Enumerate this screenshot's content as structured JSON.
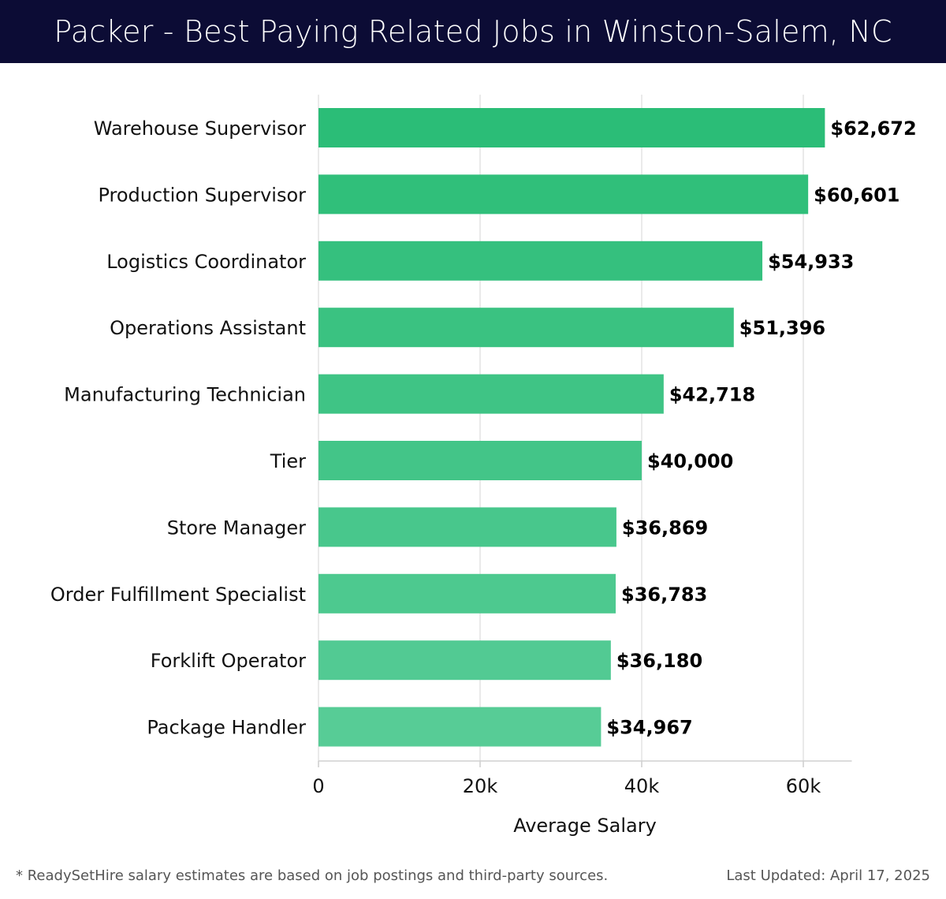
{
  "header": {
    "title": "Packer - Best Paying Related Jobs in Winston-Salem, NC"
  },
  "chart_data": {
    "type": "bar",
    "orientation": "horizontal",
    "title": "Packer - Best Paying Related Jobs in Winston-Salem, NC",
    "categories": [
      "Warehouse Supervisor",
      "Production Supervisor",
      "Logistics Coordinator",
      "Operations Assistant",
      "Manufacturing Technician",
      "Tier",
      "Store Manager",
      "Order Fulfillment Specialist",
      "Forklift Operator",
      "Package Handler"
    ],
    "values": [
      62672,
      60601,
      54933,
      51396,
      42718,
      40000,
      36869,
      36783,
      36180,
      34967
    ],
    "value_labels": [
      "$62,672",
      "$60,601",
      "$54,933",
      "$51,396",
      "$42,718",
      "$40,000",
      "$36,869",
      "$36,783",
      "$36,180",
      "$34,967"
    ],
    "xlabel": "Average Salary",
    "ylabel": "",
    "xlim": [
      0,
      66000
    ],
    "xticks": [
      0,
      20000,
      40000,
      60000
    ],
    "xtick_labels": [
      "0",
      "20k",
      "40k",
      "60k"
    ],
    "grid": true,
    "colors": {
      "top": "#2bbd77",
      "bottom": "#57cc96"
    }
  },
  "footer": {
    "note": "* ReadySetHire salary estimates are based on job postings and third-party sources.",
    "updated": "Last Updated: April 17, 2025"
  }
}
